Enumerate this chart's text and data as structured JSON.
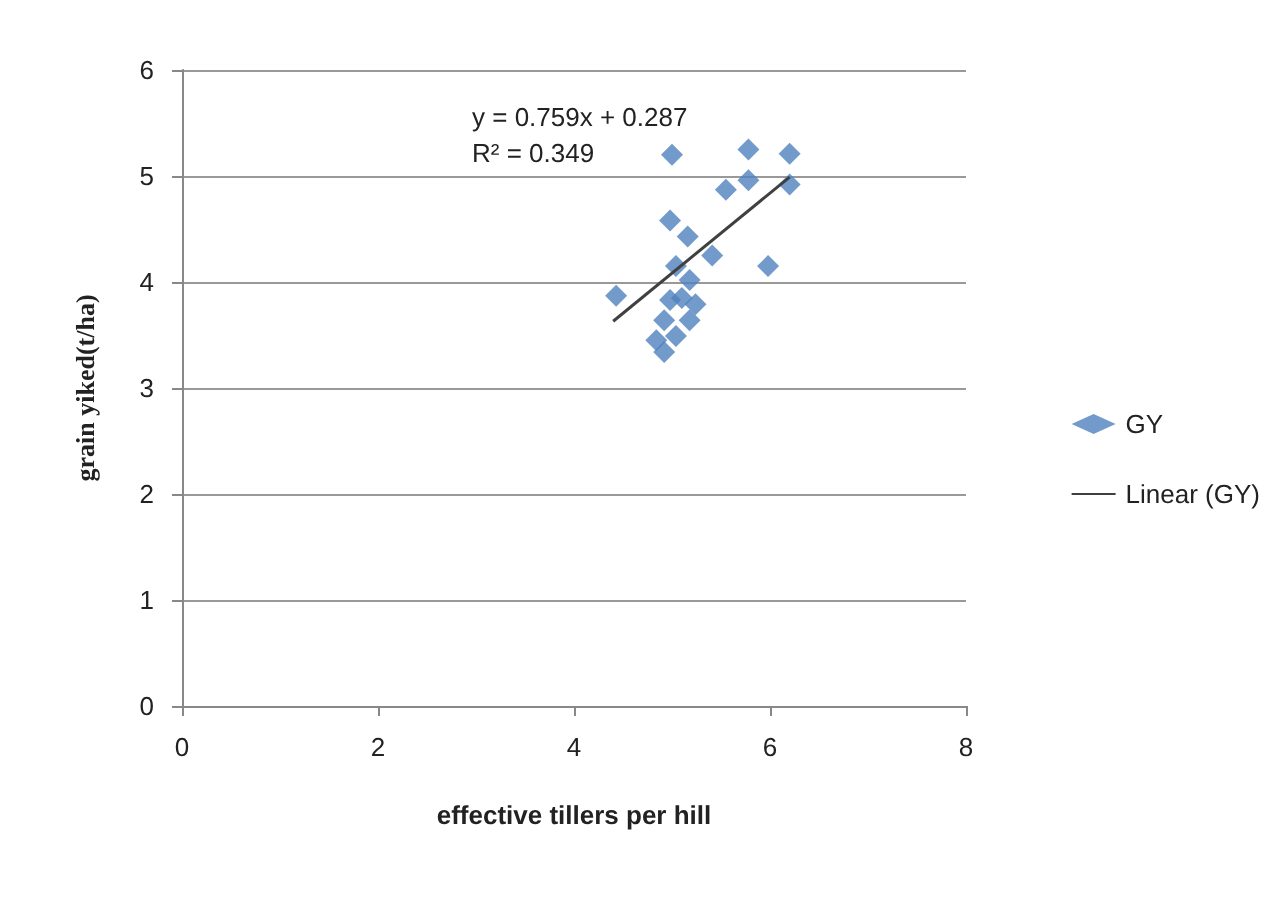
{
  "chart_data": {
    "type": "scatter",
    "xlabel": "effective tillers per hill",
    "ylabel": "grain yiked(t/ha)",
    "annotations": [
      "y = 0.759x + 0.287",
      "R² = 0.349"
    ],
    "series": [
      {
        "name": "GY",
        "marker": "diamond",
        "color": "#4f81bd",
        "x": [
          4.43,
          5.0,
          5.78,
          6.2,
          6.2,
          5.78,
          5.55,
          5.98,
          5.41,
          5.16,
          4.98,
          5.04,
          5.18,
          4.98,
          5.24,
          5.18,
          4.92,
          4.84,
          4.92,
          5.04,
          5.1
        ],
        "values": [
          3.87,
          5.2,
          5.25,
          5.21,
          4.92,
          4.96,
          4.87,
          4.15,
          4.25,
          4.43,
          4.58,
          4.15,
          4.02,
          3.83,
          3.79,
          3.64,
          3.64,
          3.45,
          3.34,
          3.49,
          3.85
        ]
      },
      {
        "name": "Linear (GY)",
        "type": "line",
        "color": "#404040",
        "x": [
          4.4,
          6.2
        ],
        "values": [
          3.63,
          4.99
        ],
        "marker": "none"
      }
    ],
    "xlim": [
      0,
      8
    ],
    "xticks": [
      0,
      2,
      4,
      6,
      8
    ],
    "ylim": [
      0,
      6
    ],
    "yticks": [
      0,
      1,
      2,
      3,
      4,
      5,
      6
    ],
    "grid": "y",
    "legend": "right"
  }
}
